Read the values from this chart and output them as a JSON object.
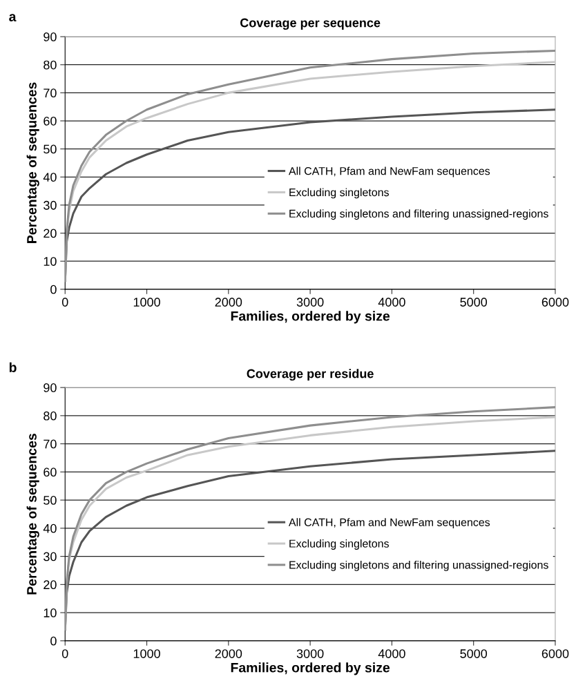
{
  "chart_data": [
    {
      "type": "line",
      "title": "Coverage per sequence",
      "xlabel": "Families, ordered by size",
      "ylabel": "Percentage of sequences",
      "annotations": [
        "a"
      ],
      "x": [
        0,
        20,
        50,
        100,
        200,
        300,
        500,
        750,
        1000,
        1500,
        2000,
        3000,
        4000,
        5000,
        6000
      ],
      "series": [
        {
          "name": "All CATH, Pfam and NewFam sequences",
          "color": "#555555",
          "values": [
            3,
            17,
            22,
            27,
            33,
            36,
            41,
            45,
            48,
            53,
            56,
            59.5,
            61.5,
            63,
            64
          ]
        },
        {
          "name": "Excluding singletons",
          "color": "#c8c8c8",
          "values": [
            3,
            20,
            28,
            35,
            42,
            47,
            53,
            58,
            61,
            66,
            70,
            75,
            77.5,
            79.5,
            81
          ]
        },
        {
          "name": "Excluding singletons and filtering unassigned-regions",
          "color": "#8e8e8e",
          "values": [
            3,
            21,
            30,
            37,
            44,
            49,
            55,
            60,
            64,
            69.5,
            73,
            79,
            82,
            84,
            85
          ]
        }
      ],
      "xlim": [
        0,
        6000
      ],
      "xticks": [
        0,
        1000,
        2000,
        3000,
        4000,
        5000,
        6000
      ],
      "ylim": [
        0,
        90
      ],
      "yticks": [
        0,
        10,
        20,
        30,
        40,
        50,
        60,
        70,
        80,
        90
      ],
      "grid": "y",
      "legend": "right",
      "marker": "none",
      "line_style": "solid"
    },
    {
      "type": "line",
      "title": "Coverage per residue",
      "xlabel": "Families, ordered by size",
      "ylabel": "Percentage of sequences",
      "annotations": [
        "b"
      ],
      "x": [
        0,
        20,
        50,
        100,
        200,
        300,
        500,
        750,
        1000,
        1500,
        2000,
        3000,
        4000,
        5000,
        6000
      ],
      "series": [
        {
          "name": "All CATH, Pfam and NewFam sequences",
          "color": "#555555",
          "values": [
            4,
            17,
            23,
            28,
            35,
            39,
            44,
            48,
            51,
            55,
            58.5,
            62,
            64.5,
            66,
            67.5
          ]
        },
        {
          "name": "Excluding singletons",
          "color": "#c8c8c8",
          "values": [
            4,
            20,
            29,
            35,
            43,
            48,
            54,
            58,
            60.5,
            66,
            69,
            73,
            76,
            78,
            79.5
          ]
        },
        {
          "name": "Excluding singletons and filtering unassigned-regions",
          "color": "#8e8e8e",
          "values": [
            4,
            21,
            30,
            37,
            45,
            50,
            56,
            60,
            63,
            68,
            72,
            76.5,
            79.5,
            81.5,
            83
          ]
        }
      ],
      "xlim": [
        0,
        6000
      ],
      "xticks": [
        0,
        1000,
        2000,
        3000,
        4000,
        5000,
        6000
      ],
      "ylim": [
        0,
        90
      ],
      "yticks": [
        0,
        10,
        20,
        30,
        40,
        50,
        60,
        70,
        80,
        90
      ],
      "grid": "y",
      "legend": "right",
      "marker": "none",
      "line_style": "solid"
    }
  ]
}
